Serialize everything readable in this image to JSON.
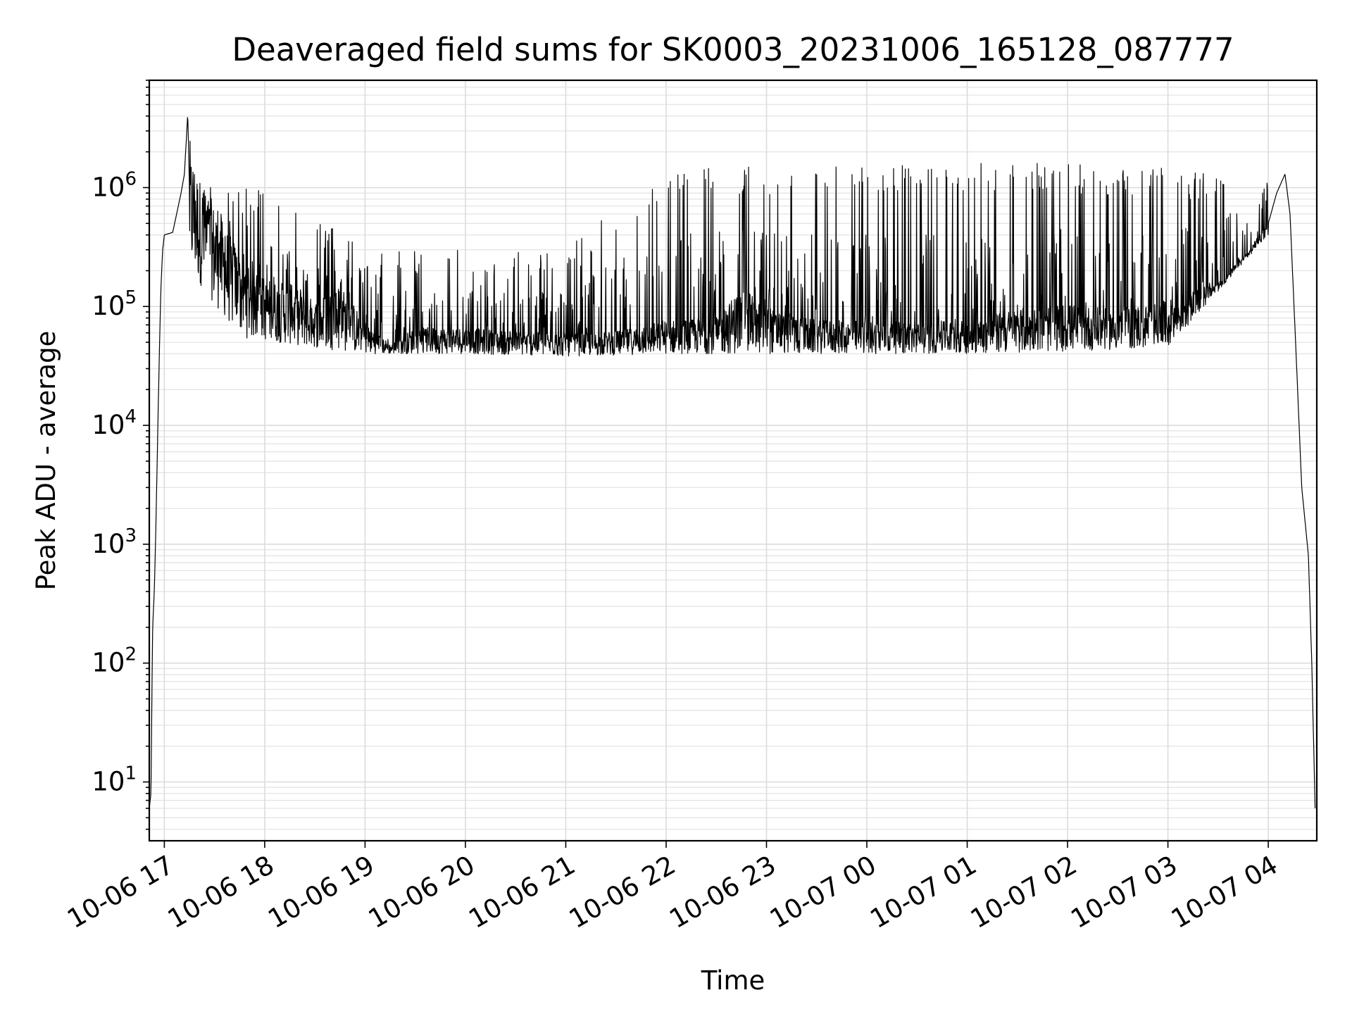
{
  "chart_data": {
    "type": "line",
    "title": "Deaveraged field sums for SK0003_20231006_165128_087777",
    "xlabel": "Time",
    "ylabel": "Peak ADU - average",
    "y_scale": "log",
    "ylim": [
      3.2,
      8000000
    ],
    "xlim": [
      "2023-10-06 16:51",
      "2023-10-07 04:29"
    ],
    "grid": "both (major and minor)",
    "legend": "none",
    "x_ticks": [
      "10-06 17",
      "10-06 18",
      "10-06 19",
      "10-06 20",
      "10-06 21",
      "10-06 22",
      "10-06 23",
      "10-07 00",
      "10-07 01",
      "10-07 02",
      "10-07 03",
      "10-07 04"
    ],
    "x_tick_values": [
      "2023-10-06 17:00",
      "2023-10-06 18:00",
      "2023-10-06 19:00",
      "2023-10-06 20:00",
      "2023-10-06 21:00",
      "2023-10-06 22:00",
      "2023-10-06 23:00",
      "2023-10-07 00:00",
      "2023-10-07 01:00",
      "2023-10-07 02:00",
      "2023-10-07 03:00",
      "2023-10-07 04:00"
    ],
    "y_ticks": [
      {
        "base": "10",
        "exp": "1",
        "value": 10
      },
      {
        "base": "10",
        "exp": "2",
        "value": 100
      },
      {
        "base": "10",
        "exp": "3",
        "value": 1000
      },
      {
        "base": "10",
        "exp": "4",
        "value": 10000
      },
      {
        "base": "10",
        "exp": "5",
        "value": 100000
      },
      {
        "base": "10",
        "exp": "6",
        "value": 1000000
      }
    ],
    "series": [
      {
        "color": "#000000",
        "points": [
          [
            "2023-10-06 16:51",
            6
          ],
          [
            "2023-10-06 16:52",
            8
          ],
          [
            "2023-10-06 16:53",
            200
          ],
          [
            "2023-10-06 16:54",
            400
          ],
          [
            "2023-10-06 16:55",
            1500
          ],
          [
            "2023-10-06 16:56",
            8000
          ],
          [
            "2023-10-06 16:57",
            40000
          ],
          [
            "2023-10-06 16:58",
            150000
          ],
          [
            "2023-10-06 16:59",
            300000
          ],
          [
            "2023-10-06 17:00",
            400000
          ],
          [
            "2023-10-06 17:05",
            420000
          ],
          [
            "2023-10-06 17:10",
            900000
          ],
          [
            "2023-10-06 17:12",
            1300000
          ],
          [
            "2023-10-06 17:14",
            4200000
          ],
          [
            "2023-10-06 17:15",
            1000000
          ],
          [
            "2023-10-06 17:20",
            600000
          ],
          [
            "2023-10-06 17:30",
            350000
          ],
          [
            "2023-10-06 17:40",
            200000
          ],
          [
            "2023-10-06 17:50",
            150000
          ],
          [
            "2023-10-06 18:00",
            110000
          ],
          [
            "2023-10-06 18:15",
            100000
          ],
          [
            "2023-10-06 18:30",
            80000
          ],
          [
            "2023-10-06 18:45",
            95000
          ],
          [
            "2023-10-06 19:00",
            60000
          ],
          [
            "2023-10-06 19:15",
            45000
          ],
          [
            "2023-10-06 19:30",
            55000
          ],
          [
            "2023-10-06 20:00",
            55000
          ],
          [
            "2023-10-06 20:30",
            52000
          ],
          [
            "2023-10-06 21:00",
            50000
          ],
          [
            "2023-10-06 21:30",
            52000
          ],
          [
            "2023-10-06 22:00",
            60000
          ],
          [
            "2023-10-06 22:30",
            62000
          ],
          [
            "2023-10-06 22:45",
            90000
          ],
          [
            "2023-10-06 23:00",
            70000
          ],
          [
            "2023-10-06 23:30",
            60000
          ],
          [
            "2023-10-07 00:00",
            60000
          ],
          [
            "2023-10-07 00:30",
            58000
          ],
          [
            "2023-10-07 01:00",
            60000
          ],
          [
            "2023-10-07 01:30",
            70000
          ],
          [
            "2023-10-07 02:00",
            75000
          ],
          [
            "2023-10-07 02:30",
            70000
          ],
          [
            "2023-10-07 03:00",
            80000
          ],
          [
            "2023-10-07 03:30",
            150000
          ],
          [
            "2023-10-07 03:50",
            300000
          ],
          [
            "2023-10-07 04:00",
            500000
          ],
          [
            "2023-10-07 04:05",
            900000
          ],
          [
            "2023-10-07 04:10",
            1300000
          ],
          [
            "2023-10-07 04:13",
            600000
          ],
          [
            "2023-10-07 04:17",
            30000
          ],
          [
            "2023-10-07 04:20",
            3000
          ],
          [
            "2023-10-07 04:24",
            800
          ],
          [
            "2023-10-07 04:26",
            100
          ],
          [
            "2023-10-07 04:28",
            6
          ]
        ],
        "envelope_upper": [
          [
            "2023-10-06 17:15",
            1300000
          ],
          [
            "2023-10-06 18:00",
            1000000
          ],
          [
            "2023-10-06 18:30",
            600000
          ],
          [
            "2023-10-06 19:00",
            300000
          ],
          [
            "2023-10-06 20:00",
            300000
          ],
          [
            "2023-10-06 21:00",
            300000
          ],
          [
            "2023-10-06 22:00",
            1500000
          ],
          [
            "2023-10-06 23:00",
            1500000
          ],
          [
            "2023-10-07 00:00",
            1550000
          ],
          [
            "2023-10-07 01:00",
            1600000
          ],
          [
            "2023-10-07 02:00",
            1600000
          ],
          [
            "2023-10-07 03:00",
            1450000
          ],
          [
            "2023-10-07 04:00",
            1300000
          ]
        ],
        "envelope_lower": [
          [
            "2023-10-06 17:15",
            200000
          ],
          [
            "2023-10-06 17:45",
            55000
          ],
          [
            "2023-10-06 18:30",
            45000
          ],
          [
            "2023-10-06 19:00",
            40000
          ],
          [
            "2023-10-06 20:00",
            40000
          ],
          [
            "2023-10-06 21:00",
            38000
          ],
          [
            "2023-10-06 22:00",
            40000
          ],
          [
            "2023-10-06 23:00",
            40000
          ],
          [
            "2023-10-07 00:00",
            40000
          ],
          [
            "2023-10-07 01:00",
            40000
          ],
          [
            "2023-10-07 02:00",
            42000
          ],
          [
            "2023-10-07 03:00",
            45000
          ],
          [
            "2023-10-07 04:00",
            400000
          ]
        ]
      }
    ]
  }
}
